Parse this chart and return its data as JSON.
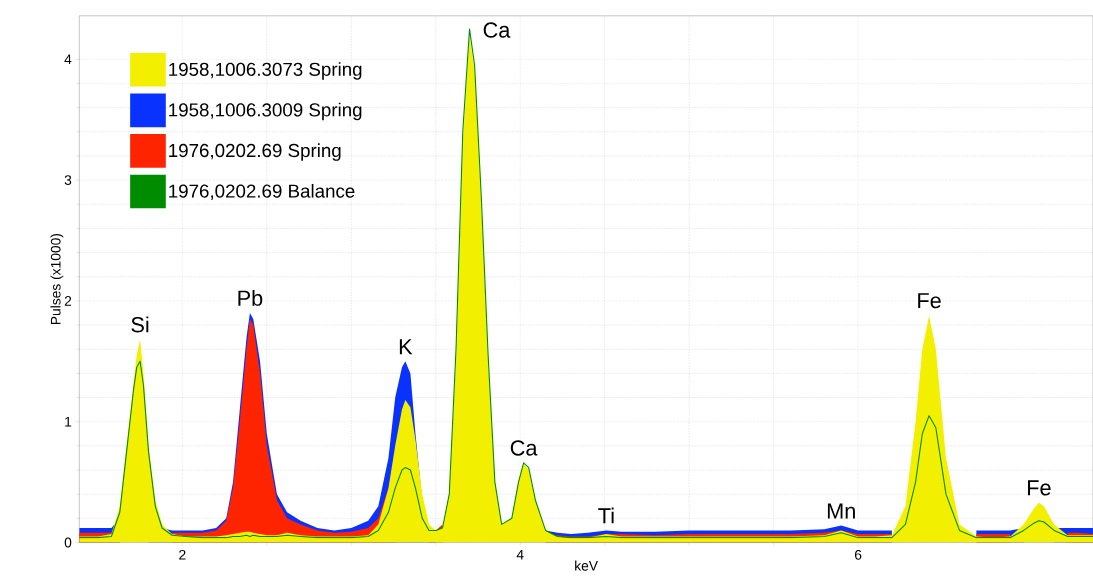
{
  "chart_data": {
    "type": "area",
    "xlabel": "keV",
    "ylabel": "Pulses (x1000)",
    "x": [
      1.39,
      1.5,
      1.58,
      1.63,
      1.67,
      1.71,
      1.73,
      1.75,
      1.77,
      1.8,
      1.84,
      1.88,
      1.94,
      2.02,
      2.12,
      2.2,
      2.26,
      2.3,
      2.34,
      2.38,
      2.4,
      2.42,
      2.46,
      2.5,
      2.56,
      2.62,
      2.7,
      2.8,
      2.9,
      3.0,
      3.1,
      3.16,
      3.22,
      3.26,
      3.3,
      3.32,
      3.35,
      3.38,
      3.42,
      3.46,
      3.5,
      3.54,
      3.58,
      3.62,
      3.66,
      3.7,
      3.73,
      3.77,
      3.81,
      3.85,
      3.89,
      3.95,
      3.99,
      4.02,
      4.05,
      4.09,
      4.15,
      4.22,
      4.3,
      4.4,
      4.51,
      4.6,
      4.8,
      5.0,
      5.2,
      5.4,
      5.6,
      5.8,
      5.9,
      6.0,
      6.1,
      6.2,
      6.28,
      6.34,
      6.38,
      6.42,
      6.46,
      6.52,
      6.6,
      6.7,
      6.8,
      6.9,
      6.98,
      7.04,
      7.07,
      7.1,
      7.16,
      7.24,
      7.3,
      7.39
    ],
    "series": [
      {
        "name": "1958,1006.3073 Spring",
        "color": "#f2f000",
        "values": [
          0.05,
          0.05,
          0.07,
          0.3,
          0.8,
          1.3,
          1.55,
          1.68,
          1.4,
          0.8,
          0.35,
          0.15,
          0.07,
          0.05,
          0.05,
          0.05,
          0.06,
          0.07,
          0.08,
          0.09,
          0.09,
          0.08,
          0.07,
          0.06,
          0.06,
          0.08,
          0.06,
          0.05,
          0.05,
          0.05,
          0.06,
          0.15,
          0.45,
          0.8,
          1.1,
          1.18,
          1.12,
          0.85,
          0.4,
          0.15,
          0.1,
          0.12,
          0.4,
          1.5,
          3.3,
          4.2,
          3.9,
          2.8,
          1.5,
          0.5,
          0.15,
          0.2,
          0.5,
          0.65,
          0.6,
          0.35,
          0.1,
          0.05,
          0.04,
          0.04,
          0.07,
          0.05,
          0.05,
          0.05,
          0.05,
          0.05,
          0.05,
          0.06,
          0.1,
          0.05,
          0.05,
          0.06,
          0.3,
          1.0,
          1.6,
          1.88,
          1.6,
          0.7,
          0.15,
          0.05,
          0.04,
          0.05,
          0.15,
          0.28,
          0.33,
          0.3,
          0.15,
          0.06,
          0.06,
          0.06
        ]
      },
      {
        "name": "1958,1006.3009 Spring",
        "color": "#0a32ff",
        "values": [
          0.12,
          0.12,
          0.12,
          0.2,
          null,
          null,
          null,
          null,
          null,
          0.6,
          0.25,
          0.12,
          0.1,
          0.1,
          0.1,
          0.12,
          0.2,
          0.5,
          1.1,
          1.7,
          1.9,
          1.85,
          1.5,
          0.9,
          0.4,
          0.25,
          0.18,
          0.12,
          0.1,
          0.12,
          0.18,
          0.3,
          0.7,
          1.2,
          1.45,
          1.5,
          1.4,
          0.9,
          0.35,
          0.12,
          0.1,
          null,
          null,
          null,
          null,
          null,
          null,
          null,
          null,
          null,
          null,
          null,
          null,
          null,
          null,
          null,
          0.1,
          0.08,
          0.07,
          0.08,
          0.1,
          0.09,
          0.09,
          0.1,
          0.1,
          0.1,
          0.1,
          0.11,
          0.14,
          0.1,
          0.1,
          0.1,
          null,
          null,
          null,
          null,
          null,
          null,
          null,
          0.1,
          0.1,
          0.1,
          0.12,
          null,
          null,
          null,
          0.12,
          0.12,
          0.12,
          0.12
        ]
      },
      {
        "name": "1976,0202.69 Spring",
        "color": "#ff2400",
        "values": [
          0.08,
          0.08,
          0.08,
          0.2,
          null,
          null,
          null,
          null,
          null,
          null,
          null,
          null,
          0.08,
          0.08,
          0.08,
          0.1,
          0.18,
          0.45,
          1.0,
          1.6,
          1.85,
          1.8,
          1.4,
          0.8,
          0.35,
          0.2,
          0.15,
          0.1,
          0.08,
          0.09,
          0.12,
          0.2,
          0.45,
          0.7,
          null,
          null,
          null,
          null,
          null,
          0.12,
          0.1,
          0.15,
          null,
          null,
          null,
          null,
          null,
          null,
          null,
          null,
          null,
          null,
          null,
          null,
          null,
          null,
          0.07,
          0.06,
          0.05,
          0.05,
          0.07,
          0.07,
          0.06,
          0.07,
          0.07,
          0.07,
          0.07,
          0.08,
          0.1,
          0.07,
          0.07,
          0.07,
          null,
          null,
          null,
          null,
          null,
          null,
          null,
          0.07,
          0.07,
          0.07,
          null,
          null,
          null,
          null,
          null,
          0.08,
          0.08,
          0.07
        ]
      },
      {
        "name": "1976,0202.69 Balance",
        "color": "#008c00",
        "type": "line",
        "values": [
          0.04,
          0.04,
          0.05,
          0.25,
          0.75,
          1.25,
          1.45,
          1.5,
          1.3,
          0.75,
          0.3,
          0.12,
          0.06,
          0.05,
          0.04,
          0.04,
          0.04,
          0.05,
          0.05,
          0.06,
          0.05,
          0.06,
          0.05,
          0.05,
          0.05,
          0.06,
          0.05,
          0.04,
          0.04,
          0.04,
          0.05,
          0.1,
          0.25,
          0.45,
          0.6,
          0.62,
          0.6,
          0.45,
          0.2,
          0.1,
          0.1,
          0.12,
          0.4,
          1.6,
          3.4,
          4.25,
          3.95,
          2.85,
          1.55,
          0.5,
          0.15,
          0.2,
          0.5,
          0.66,
          0.62,
          0.35,
          0.1,
          0.05,
          0.04,
          0.04,
          0.05,
          0.04,
          0.04,
          0.04,
          0.04,
          0.04,
          0.04,
          0.05,
          0.08,
          0.04,
          0.04,
          0.04,
          0.15,
          0.5,
          0.9,
          1.05,
          0.95,
          0.4,
          0.1,
          0.04,
          0.04,
          0.04,
          0.1,
          0.16,
          0.18,
          0.17,
          0.1,
          0.05,
          0.05,
          0.05
        ]
      }
    ],
    "xlim": [
      1.39,
      7.39
    ],
    "ylim": [
      0,
      4.36
    ],
    "xticks": [
      2,
      4,
      6
    ],
    "yticks": [
      0,
      1,
      2,
      3,
      4
    ],
    "grid": true,
    "legend": "top left",
    "annotations": [
      {
        "text": "Si",
        "x": 1.75,
        "y": 1.68
      },
      {
        "text": "Pb",
        "x": 2.4,
        "y": 1.9
      },
      {
        "text": "K",
        "x": 3.32,
        "y": 1.5
      },
      {
        "text": "Ca",
        "x": 3.7,
        "y": 4.25
      },
      {
        "text": "Ca",
        "x": 4.02,
        "y": 0.66
      },
      {
        "text": "Ti",
        "x": 4.51,
        "y": 0.1
      },
      {
        "text": "Mn",
        "x": 5.9,
        "y": 0.14
      },
      {
        "text": "Fe",
        "x": 6.42,
        "y": 1.88
      },
      {
        "text": "Fe",
        "x": 7.07,
        "y": 0.33
      }
    ]
  }
}
